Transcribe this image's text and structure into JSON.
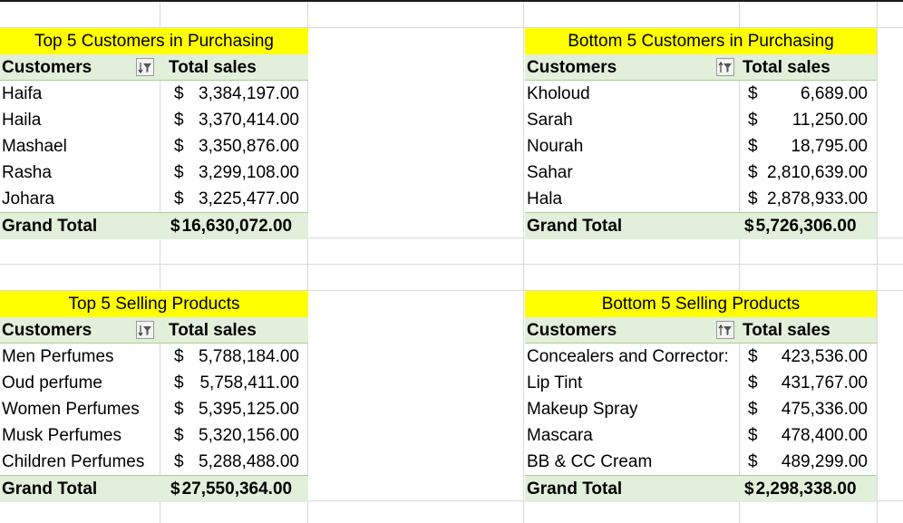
{
  "pivots": [
    {
      "title": "Top 5 Customers in Purchasing",
      "header_left": "Customers",
      "header_right": "Total sales",
      "rows": [
        {
          "name": "Haifa",
          "cur": "$",
          "value": "3,384,197.00"
        },
        {
          "name": "Haila",
          "cur": "$",
          "value": "3,370,414.00"
        },
        {
          "name": "Mashael",
          "cur": "$",
          "value": "3,350,876.00"
        },
        {
          "name": "Rasha",
          "cur": "$",
          "value": "3,299,108.00"
        },
        {
          "name": "Johara",
          "cur": "$",
          "value": "3,225,477.00"
        }
      ],
      "total_label": "Grand Total",
      "total_cur": "$",
      "total_value": "16,630,072.00",
      "sort_icon": "sort-descending-filter-icon"
    },
    {
      "title": "Bottom 5 Customers in Purchasing",
      "header_left": "Customers",
      "header_right": "Total sales",
      "rows": [
        {
          "name": "Kholoud",
          "cur": "$",
          "value": "6,689.00"
        },
        {
          "name": "Sarah",
          "cur": "$",
          "value": "11,250.00"
        },
        {
          "name": "Nourah",
          "cur": "$",
          "value": "18,795.00"
        },
        {
          "name": "Sahar",
          "cur": "$",
          "value": "2,810,639.00"
        },
        {
          "name": "Hala",
          "cur": "$",
          "value": "2,878,933.00"
        }
      ],
      "total_label": "Grand Total",
      "total_cur": "$",
      "total_value": "5,726,306.00",
      "sort_icon": "sort-ascending-filter-icon"
    },
    {
      "title": "Top 5 Selling Products",
      "header_left": "Customers",
      "header_right": "Total sales",
      "rows": [
        {
          "name": "Men Perfumes",
          "cur": "$",
          "value": "5,788,184.00"
        },
        {
          "name": "Oud perfume",
          "cur": "$",
          "value": "5,758,411.00"
        },
        {
          "name": "Women Perfumes",
          "cur": "$",
          "value": "5,395,125.00"
        },
        {
          "name": "Musk Perfumes",
          "cur": "$",
          "value": "5,320,156.00"
        },
        {
          "name": "Children Perfumes",
          "cur": "$",
          "value": "5,288,488.00"
        }
      ],
      "total_label": "Grand Total",
      "total_cur": "$",
      "total_value": "27,550,364.00",
      "sort_icon": "sort-descending-filter-icon"
    },
    {
      "title": "Bottom 5 Selling Products",
      "header_left": "Customers",
      "header_right": "Total sales",
      "rows": [
        {
          "name": "Concealers and Corrector:",
          "cur": "$",
          "value": "423,536.00"
        },
        {
          "name": "Lip Tint",
          "cur": "$",
          "value": "431,767.00"
        },
        {
          "name": "Makeup Spray",
          "cur": "$",
          "value": "475,336.00"
        },
        {
          "name": "Mascara",
          "cur": "$",
          "value": "478,400.00"
        },
        {
          "name": "BB & CC Cream",
          "cur": "$",
          "value": "489,299.00"
        }
      ],
      "total_label": "Grand Total",
      "total_cur": "$",
      "total_value": "2,298,338.00",
      "sort_icon": "sort-ascending-filter-icon"
    }
  ],
  "colors": {
    "title_fill": "#ffff00",
    "header_fill": "#e2efda",
    "gridline": "#d9d9d9"
  }
}
